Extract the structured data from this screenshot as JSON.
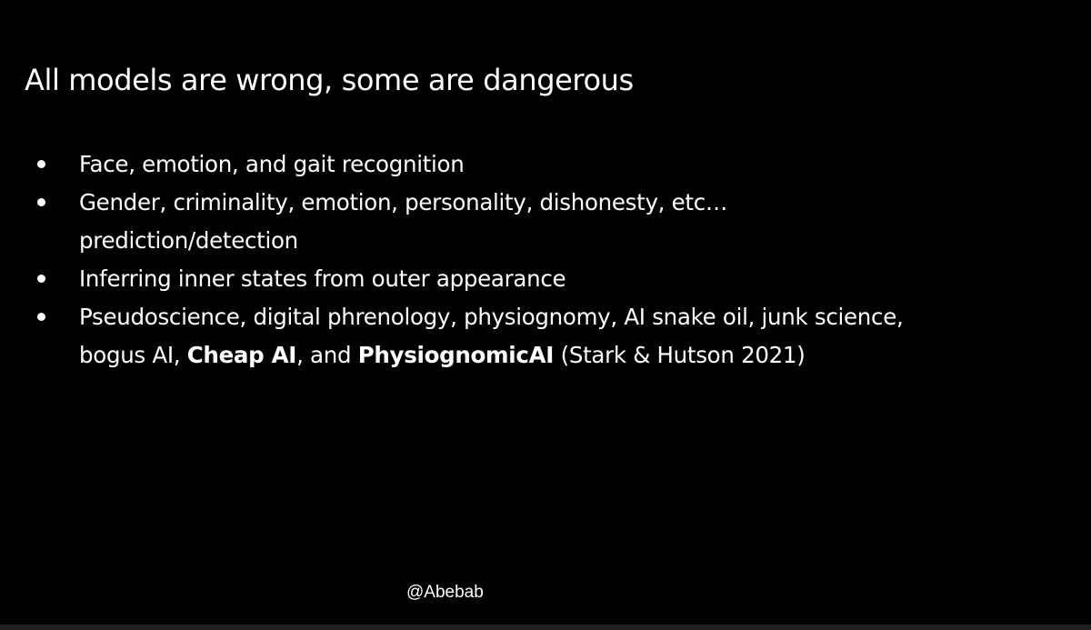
{
  "slide": {
    "title": "All models are wrong, some are dangerous",
    "bullets": [
      {
        "lines": [
          "Face, emotion, and gait recognition"
        ]
      },
      {
        "lines": [
          "Gender, criminality, emotion, personality, dishonesty, etc…",
          "prediction/detection"
        ]
      },
      {
        "lines": [
          "Inferring inner states from outer appearance"
        ]
      },
      {
        "line1": "Pseudoscience, digital phrenology, physiognomy, AI snake oil, junk science,",
        "line2_parts": {
          "a": "bogus AI, ",
          "b": "Cheap AI",
          "c": ", and ",
          "d": "PhysiognomicAI",
          "e": " (Stark & Hutson 2021)"
        }
      }
    ],
    "handle": "@Abebab"
  },
  "colors": {
    "background": "#000000",
    "text": "#ffffff"
  }
}
